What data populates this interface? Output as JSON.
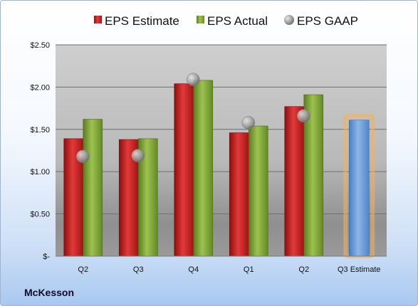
{
  "company": "McKesson",
  "legend": [
    {
      "label": "EPS Estimate",
      "key": "estimate"
    },
    {
      "label": "EPS Actual",
      "key": "actual"
    },
    {
      "label": "EPS GAAP",
      "key": "gaap"
    }
  ],
  "colors": {
    "estimate": "#c81e1e",
    "actual": "#7ea535",
    "gaap": "#a8a8a8",
    "forecast": "#6d9fdc",
    "forecast_glow": "#f6b055"
  },
  "chart_data": {
    "type": "bar",
    "categories": [
      "Q2",
      "Q3",
      "Q4",
      "Q1",
      "Q2",
      "Q3 Estimate"
    ],
    "series": [
      {
        "name": "EPS Estimate",
        "values": [
          1.39,
          1.38,
          2.04,
          1.46,
          1.77,
          null
        ]
      },
      {
        "name": "EPS Actual",
        "values": [
          1.62,
          1.39,
          2.08,
          1.54,
          1.91,
          null
        ]
      },
      {
        "name": "EPS GAAP",
        "type": "scatter",
        "values": [
          1.18,
          1.19,
          2.09,
          1.58,
          1.66,
          null
        ]
      }
    ],
    "forecast": {
      "category": "Q3 Estimate",
      "value": 1.61
    },
    "yticks": [
      "$2.50",
      "$2.00",
      "$1.50",
      "$1.00",
      "$0.50",
      "$-"
    ],
    "ylim": [
      0,
      2.5
    ],
    "grid": true,
    "legend_position": "top"
  }
}
